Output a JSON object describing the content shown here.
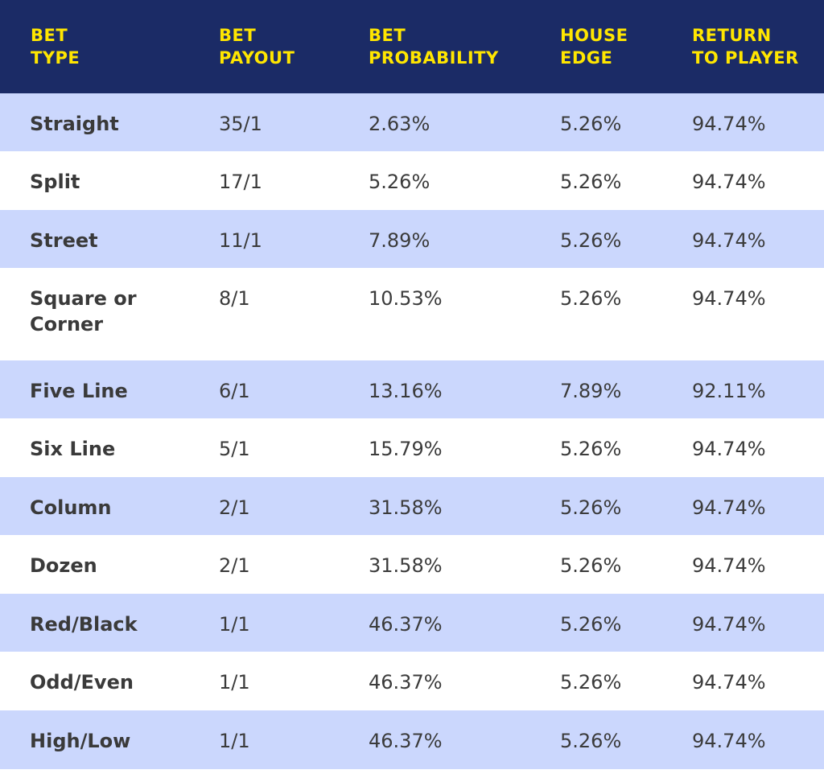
{
  "colors": {
    "header_bg": "#1b2b66",
    "header_text": "#ffe600",
    "shaded_row": "#cbd7fd",
    "plain_row": "#ffffff",
    "body_text": "#3b3b3b"
  },
  "table": {
    "headers": {
      "bet_type": "BET\nTYPE",
      "bet_payout": "BET\nPAYOUT",
      "bet_probability": "BET\nPROBABILITY",
      "house_edge": "HOUSE\nEDGE",
      "return_to_player": "RETURN\nTO PLAYER"
    },
    "rows": [
      {
        "bet_type": "Straight",
        "bet_payout": "35/1",
        "bet_probability": "2.63%",
        "house_edge": "5.26%",
        "return_to_player": "94.74%"
      },
      {
        "bet_type": "Split",
        "bet_payout": "17/1",
        "bet_probability": "5.26%",
        "house_edge": "5.26%",
        "return_to_player": "94.74%"
      },
      {
        "bet_type": "Street",
        "bet_payout": "11/1",
        "bet_probability": "7.89%",
        "house_edge": "5.26%",
        "return_to_player": "94.74%"
      },
      {
        "bet_type": "Square or\nCorner",
        "bet_payout": "8/1",
        "bet_probability": "10.53%",
        "house_edge": "5.26%",
        "return_to_player": "94.74%"
      },
      {
        "bet_type": "Five Line",
        "bet_payout": "6/1",
        "bet_probability": "13.16%",
        "house_edge": "7.89%",
        "return_to_player": "92.11%"
      },
      {
        "bet_type": "Six Line",
        "bet_payout": "5/1",
        "bet_probability": "15.79%",
        "house_edge": "5.26%",
        "return_to_player": "94.74%"
      },
      {
        "bet_type": "Column",
        "bet_payout": "2/1",
        "bet_probability": "31.58%",
        "house_edge": "5.26%",
        "return_to_player": "94.74%"
      },
      {
        "bet_type": "Dozen",
        "bet_payout": "2/1",
        "bet_probability": "31.58%",
        "house_edge": "5.26%",
        "return_to_player": "94.74%"
      },
      {
        "bet_type": "Red/Black",
        "bet_payout": "1/1",
        "bet_probability": "46.37%",
        "house_edge": "5.26%",
        "return_to_player": "94.74%"
      },
      {
        "bet_type": "Odd/Even",
        "bet_payout": "1/1",
        "bet_probability": "46.37%",
        "house_edge": "5.26%",
        "return_to_player": "94.74%"
      },
      {
        "bet_type": "High/Low",
        "bet_payout": "1/1",
        "bet_probability": "46.37%",
        "house_edge": "5.26%",
        "return_to_player": "94.74%"
      }
    ]
  }
}
